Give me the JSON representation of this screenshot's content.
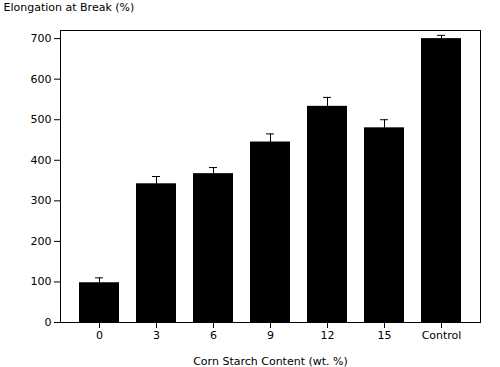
{
  "chart_data": {
    "type": "bar",
    "categories": [
      "0",
      "3",
      "6",
      "9",
      "12",
      "15",
      "Control"
    ],
    "values": [
      98,
      342,
      367,
      445,
      533,
      480,
      700
    ],
    "errors": [
      12,
      18,
      15,
      20,
      22,
      20,
      8
    ],
    "xlabel": "Corn Starch Content (wt. %)",
    "ylabel": "Elongation at Break (%)",
    "ylim": [
      0,
      720
    ],
    "yticks": [
      0,
      100,
      200,
      300,
      400,
      500,
      600,
      700
    ]
  }
}
